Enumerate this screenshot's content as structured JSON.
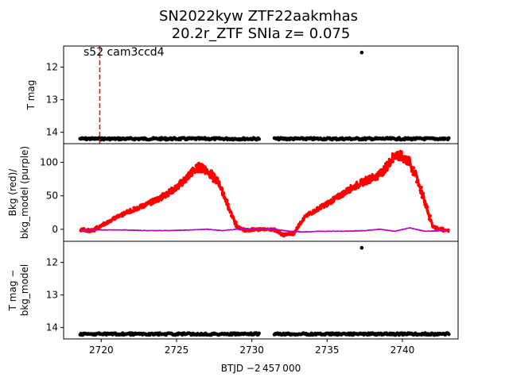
{
  "title_line1": "SN2022kyw  ZTF22aakmhas",
  "title_line2": "20.2r_ZTF SNIa z= 0.075",
  "xlabel": "BTJD −2 457 000",
  "annotation": "s52 cam3ccd4",
  "chart_data": [
    {
      "type": "scatter",
      "ylabel": "T mag",
      "xlim": [
        2717.5,
        2743.7
      ],
      "ylim": [
        14.35,
        11.35
      ],
      "yticks": [
        12,
        13,
        14
      ],
      "marker_line": {
        "x": 2719.9,
        "color": "#ff0000",
        "style": "dashed"
      },
      "series": [
        {
          "color": "#000000",
          "segments": [
            [
              2718.6,
              2730.5,
              14.2
            ],
            [
              2731.5,
              2743.1,
              14.2
            ]
          ],
          "points": [
            {
              "x": 2737.3,
              "y": 11.55
            }
          ]
        }
      ]
    },
    {
      "type": "line",
      "ylabel_lines": [
        "Bkg (red)/",
        "bkg_model (purple)"
      ],
      "xlim": [
        2717.5,
        2743.7
      ],
      "ylim": [
        -18,
        128
      ],
      "yticks": [
        0,
        50,
        100
      ],
      "series": [
        {
          "color": "#ff0000",
          "points": [
            [
              2718.6,
              0
            ],
            [
              2719.3,
              -3
            ],
            [
              2720.0,
              5
            ],
            [
              2721.0,
              18
            ],
            [
              2722.0,
              28
            ],
            [
              2723.0,
              37
            ],
            [
              2724.0,
              48
            ],
            [
              2725.0,
              62
            ],
            [
              2726.0,
              85
            ],
            [
              2726.5,
              93
            ],
            [
              2727.0,
              88
            ],
            [
              2727.8,
              70
            ],
            [
              2728.5,
              30
            ],
            [
              2729.0,
              5
            ],
            [
              2729.5,
              -2
            ],
            [
              2730.5,
              0
            ],
            [
              2731.5,
              0
            ],
            [
              2732.0,
              -8
            ],
            [
              2732.8,
              -6
            ],
            [
              2733.5,
              18
            ],
            [
              2734.5,
              32
            ],
            [
              2735.5,
              45
            ],
            [
              2736.5,
              60
            ],
            [
              2737.5,
              72
            ],
            [
              2738.5,
              82
            ],
            [
              2739.0,
              95
            ],
            [
              2739.5,
              112
            ],
            [
              2740.0,
              108
            ],
            [
              2740.5,
              100
            ],
            [
              2741.0,
              75
            ],
            [
              2741.5,
              40
            ],
            [
              2742.0,
              5
            ],
            [
              2742.5,
              0
            ],
            [
              2743.1,
              -2
            ]
          ]
        },
        {
          "color": "#bf00bf",
          "points": [
            [
              2718.6,
              -1
            ],
            [
              2720.0,
              -1
            ],
            [
              2721.5,
              -1
            ],
            [
              2723.0,
              -2
            ],
            [
              2724.5,
              -2
            ],
            [
              2726.0,
              -1
            ],
            [
              2727.0,
              0
            ],
            [
              2728.0,
              -2
            ],
            [
              2729.5,
              1
            ],
            [
              2730.5,
              1
            ],
            [
              2731.5,
              0
            ],
            [
              2732.5,
              -3
            ],
            [
              2733.5,
              -4
            ],
            [
              2734.5,
              -3
            ],
            [
              2736.0,
              -3
            ],
            [
              2737.5,
              -2
            ],
            [
              2738.5,
              0
            ],
            [
              2739.5,
              -3
            ],
            [
              2740.5,
              2
            ],
            [
              2741.5,
              -3
            ],
            [
              2743.1,
              -2
            ]
          ]
        }
      ]
    },
    {
      "type": "scatter",
      "ylabel_lines": [
        "T mag −",
        "bkg_model"
      ],
      "xlim": [
        2717.5,
        2743.7
      ],
      "ylim": [
        14.35,
        11.35
      ],
      "yticks": [
        12,
        13,
        14
      ],
      "xticks": [
        2720,
        2725,
        2730,
        2735,
        2740
      ],
      "series": [
        {
          "color": "#000000",
          "segments": [
            [
              2718.6,
              2730.5,
              14.2
            ],
            [
              2731.5,
              2743.1,
              14.2
            ]
          ],
          "points": [
            {
              "x": 2737.3,
              "y": 11.55
            }
          ]
        }
      ]
    }
  ]
}
